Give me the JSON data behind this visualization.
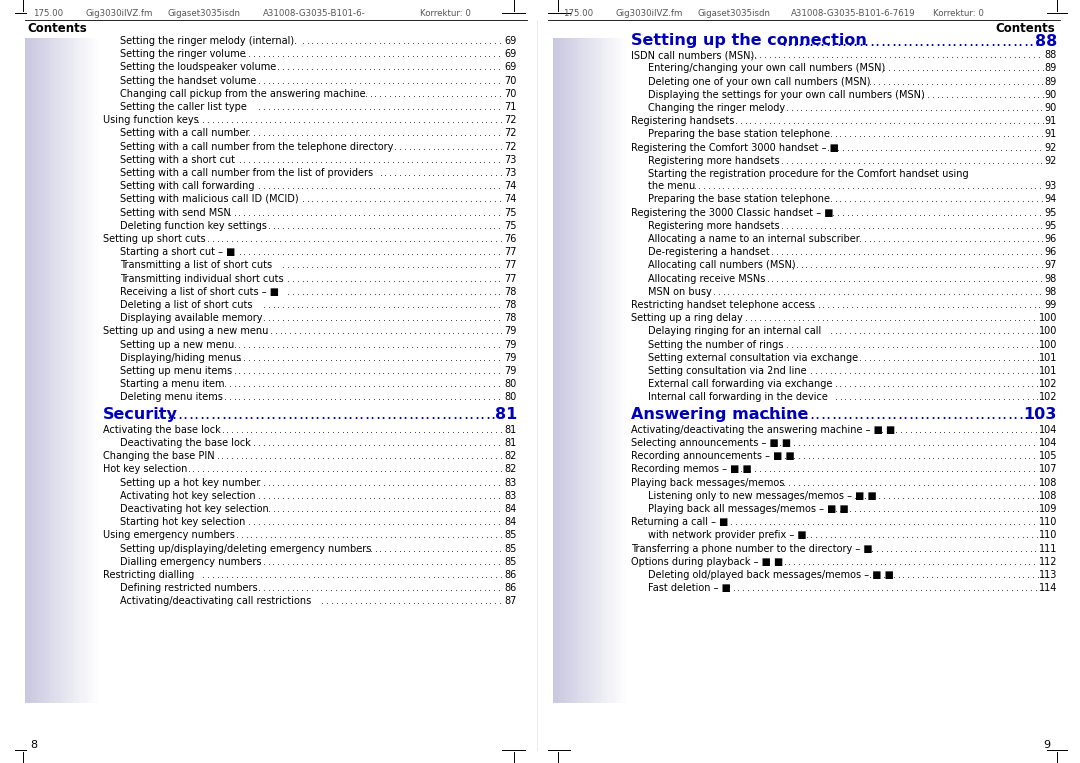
{
  "background_color": "#ffffff",
  "left_page": {
    "header": "175.00    Gig3030iIVZ.fm   Gigaset3035isdn   A31008-G3035-B101-6-        Korrektur: 0",
    "footer": "8",
    "contents_title": "Contents",
    "entries": [
      {
        "text": "Setting the ringer melody (internal).",
        "page": "69",
        "indent": 2
      },
      {
        "text": "Setting the ringer volume",
        "page": "69",
        "indent": 2
      },
      {
        "text": "Setting the loudspeaker volume",
        "page": "69",
        "indent": 2
      },
      {
        "text": "Setting the handset volume",
        "page": "70",
        "indent": 2
      },
      {
        "text": "Changing call pickup from the answering machine",
        "page": "70",
        "indent": 2
      },
      {
        "text": "Setting the caller list type",
        "page": "71",
        "indent": 2
      },
      {
        "text": "Using function keys",
        "page": "72",
        "indent": 1
      },
      {
        "text": "Setting with a call number",
        "page": "72",
        "indent": 2
      },
      {
        "text": "Setting with a call number from the telephone directory",
        "page": "72",
        "indent": 2
      },
      {
        "text": "Setting with a short cut",
        "page": "73",
        "indent": 2
      },
      {
        "text": "Setting with a call number from the list of providers",
        "page": "73",
        "indent": 2
      },
      {
        "text": "Setting with call forwarding",
        "page": "74",
        "indent": 2
      },
      {
        "text": "Setting with malicious call ID (MCID)",
        "page": "74",
        "indent": 2
      },
      {
        "text": "Setting with send MSN",
        "page": "75",
        "indent": 2
      },
      {
        "text": "Deleting function key settings",
        "page": "75",
        "indent": 2
      },
      {
        "text": "Setting up short cuts",
        "page": "76",
        "indent": 1
      },
      {
        "text": "Starting a short cut – ■",
        "page": "77",
        "indent": 2
      },
      {
        "text": "Transmitting a list of short cuts",
        "page": "77",
        "indent": 2
      },
      {
        "text": "Transmitting individual short cuts",
        "page": "77",
        "indent": 2
      },
      {
        "text": "Receiving a list of short cuts – ■",
        "page": "78",
        "indent": 2
      },
      {
        "text": "Deleting a list of short cuts",
        "page": "78",
        "indent": 2
      },
      {
        "text": "Displaying available memory",
        "page": "78",
        "indent": 2
      },
      {
        "text": "Setting up and using a new menu",
        "page": "79",
        "indent": 1
      },
      {
        "text": "Setting up a new menu",
        "page": "79",
        "indent": 2
      },
      {
        "text": "Displaying/hiding menus",
        "page": "79",
        "indent": 2
      },
      {
        "text": "Setting up menu items",
        "page": "79",
        "indent": 2
      },
      {
        "text": "Starting a menu item",
        "page": "80",
        "indent": 2
      },
      {
        "text": "Deleting menu items",
        "page": "80",
        "indent": 2
      }
    ],
    "section2_title": "Security",
    "section2_page": "81",
    "section2_entries": [
      {
        "text": "Activating the base lock",
        "page": "81",
        "indent": 1
      },
      {
        "text": "Deactivating the base lock",
        "page": "81",
        "indent": 2
      },
      {
        "text": "Changing the base PIN",
        "page": "82",
        "indent": 1
      },
      {
        "text": "Hot key selection",
        "page": "82",
        "indent": 1
      },
      {
        "text": "Setting up a hot key number",
        "page": "83",
        "indent": 2
      },
      {
        "text": "Activating hot key selection",
        "page": "83",
        "indent": 2
      },
      {
        "text": "Deactivating hot key selection",
        "page": "84",
        "indent": 2
      },
      {
        "text": "Starting hot key selection",
        "page": "84",
        "indent": 2
      },
      {
        "text": "Using emergency numbers",
        "page": "85",
        "indent": 1
      },
      {
        "text": "Setting up/displaying/deleting emergency numbers",
        "page": "85",
        "indent": 2
      },
      {
        "text": "Dialling emergency numbers",
        "page": "85",
        "indent": 2
      },
      {
        "text": "Restricting dialling",
        "page": "86",
        "indent": 1
      },
      {
        "text": "Defining restricted numbers",
        "page": "86",
        "indent": 2
      },
      {
        "text": "Activating/deactivating call restrictions",
        "page": "87",
        "indent": 2
      }
    ]
  },
  "right_page": {
    "header": "175.00    Gig3030iIVZ.fm   Gigaset3035isdn   A31008-G3035-B101-6-7619   Korrektur: 0",
    "footer": "9",
    "contents_title": "Contents",
    "section1_title": "Setting up the connection",
    "section1_page": "88",
    "section1_entries": [
      {
        "text": "ISDN call numbers (MSN).",
        "page": "88",
        "indent": 1
      },
      {
        "text": "Entering/changing your own call numbers (MSN)",
        "page": "89",
        "indent": 2
      },
      {
        "text": "Deleting one of your own call numbers (MSN)",
        "page": "89",
        "indent": 2
      },
      {
        "text": "Displaying the settings for your own call numbers (MSN)",
        "page": "90",
        "indent": 2
      },
      {
        "text": "Changing the ringer melody",
        "page": "90",
        "indent": 2
      },
      {
        "text": "Registering handsets",
        "page": "91",
        "indent": 1
      },
      {
        "text": "Preparing the base station telephone",
        "page": "91",
        "indent": 2
      },
      {
        "text": "Registering the Comfort 3000 handset – ■",
        "page": "92",
        "indent": 1
      },
      {
        "text": "Registering more handsets",
        "page": "92",
        "indent": 2
      },
      {
        "text": "Starting the registration procedure for the Comfort handset using",
        "page": "",
        "indent": 2,
        "multiline": true
      },
      {
        "text": "the menu",
        "page": "93",
        "indent": 2,
        "multiline_cont": true
      },
      {
        "text": "Preparing the base station telephone",
        "page": "94",
        "indent": 2
      },
      {
        "text": "Registering the 3000 Classic handset – ■",
        "page": "95",
        "indent": 1
      },
      {
        "text": "Registering more handsets",
        "page": "95",
        "indent": 2
      },
      {
        "text": "Allocating a name to an internal subscriber",
        "page": "96",
        "indent": 2
      },
      {
        "text": "De-registering a handset",
        "page": "96",
        "indent": 2
      },
      {
        "text": "Allocating call numbers (MSN)",
        "page": "97",
        "indent": 2
      },
      {
        "text": "Allocating receive MSNs",
        "page": "98",
        "indent": 2
      },
      {
        "text": "MSN on busy",
        "page": "98",
        "indent": 2
      },
      {
        "text": "Restricting handset telephone access",
        "page": "99",
        "indent": 1
      },
      {
        "text": "Setting up a ring delay",
        "page": "100",
        "indent": 1
      },
      {
        "text": "Delaying ringing for an internal call",
        "page": "100",
        "indent": 2
      },
      {
        "text": "Setting the number of rings",
        "page": "100",
        "indent": 2
      },
      {
        "text": "Setting external consultation via exchange",
        "page": "101",
        "indent": 2
      },
      {
        "text": "Setting consultation via 2nd line",
        "page": "101",
        "indent": 2
      },
      {
        "text": "External call forwarding via exchange",
        "page": "102",
        "indent": 2
      },
      {
        "text": "Internal call forwarding in the device",
        "page": "102",
        "indent": 2
      }
    ],
    "section2_title": "Answering machine",
    "section2_page": "103",
    "section2_entries": [
      {
        "text": "Activating/deactivating the answering machine – ■ ■",
        "page": "104",
        "indent": 1
      },
      {
        "text": "Selecting announcements – ■ ■",
        "page": "104",
        "indent": 1
      },
      {
        "text": "Recording announcements – ■ ■",
        "page": "105",
        "indent": 1
      },
      {
        "text": "Recording memos – ■ ■",
        "page": "107",
        "indent": 1
      },
      {
        "text": "Playing back messages/memos",
        "page": "108",
        "indent": 1
      },
      {
        "text": "Listening only to new messages/memos – ■ ■",
        "page": "108",
        "indent": 2
      },
      {
        "text": "Playing back all messages/memos – ■ ■",
        "page": "109",
        "indent": 2
      },
      {
        "text": "Returning a call – ■",
        "page": "110",
        "indent": 1
      },
      {
        "text": "with network provider prefix – ■",
        "page": "110",
        "indent": 2
      },
      {
        "text": "Transferring a phone number to the directory – ■",
        "page": "111",
        "indent": 1
      },
      {
        "text": "Options during playback – ■ ■",
        "page": "112",
        "indent": 1
      },
      {
        "text": "Deleting old/played back messages/memos – ■ ■",
        "page": "113",
        "indent": 2
      },
      {
        "text": "Fast deletion – ■",
        "page": "114",
        "indent": 2
      }
    ]
  }
}
